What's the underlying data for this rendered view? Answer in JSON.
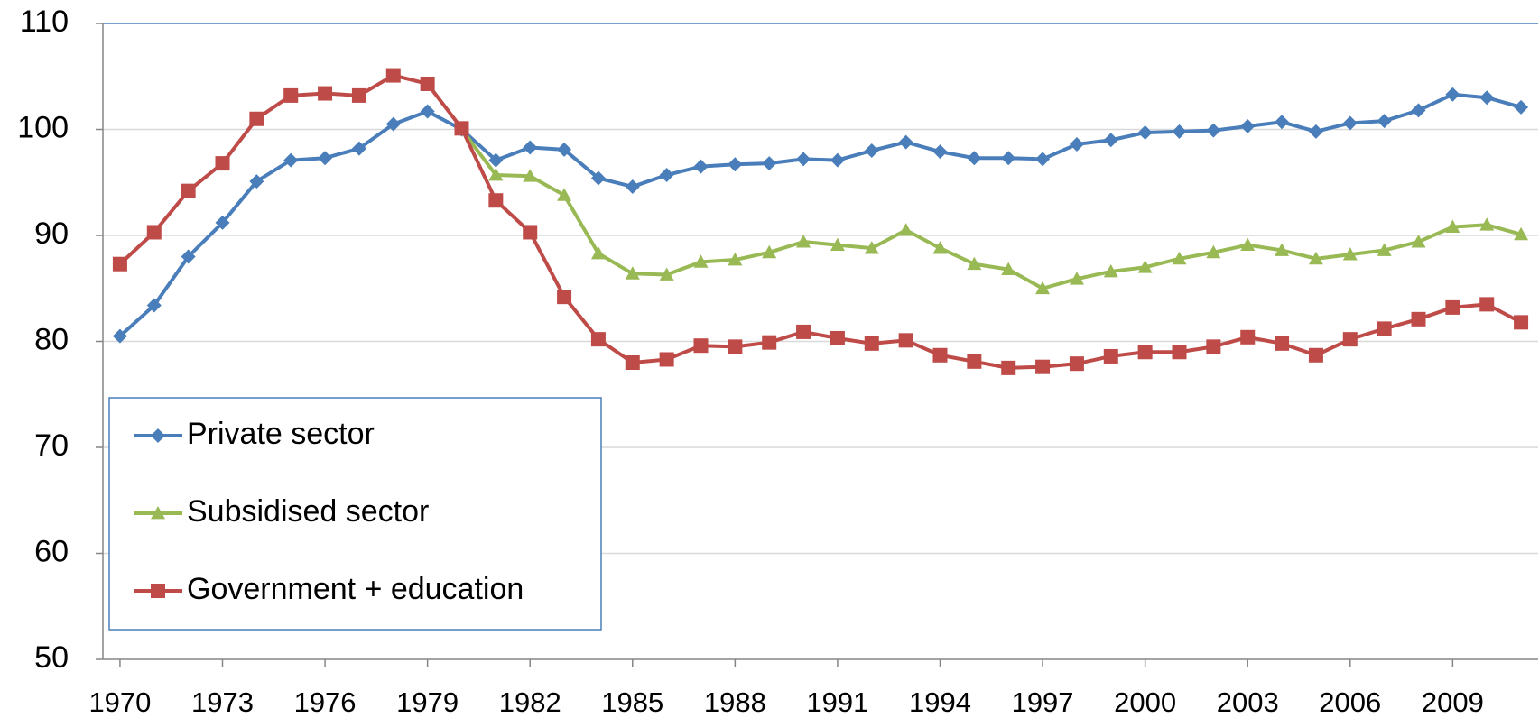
{
  "chart_data": {
    "type": "line",
    "x": [
      1970,
      1971,
      1972,
      1973,
      1974,
      1975,
      1976,
      1977,
      1978,
      1979,
      1980,
      1981,
      1982,
      1983,
      1984,
      1985,
      1986,
      1987,
      1988,
      1989,
      1990,
      1991,
      1992,
      1993,
      1994,
      1995,
      1996,
      1997,
      1998,
      1999,
      2000,
      2001,
      2002,
      2003,
      2004,
      2005,
      2006,
      2007,
      2008,
      2009,
      2010,
      2011
    ],
    "xlim": [
      1969.5,
      2011.5
    ],
    "xticks": [
      1970,
      1973,
      1976,
      1979,
      1982,
      1985,
      1988,
      1991,
      1994,
      1997,
      2000,
      2003,
      2006,
      2009
    ],
    "ylim": [
      50,
      110
    ],
    "yticks": [
      50,
      60,
      70,
      80,
      90,
      100,
      110
    ],
    "grid": true,
    "legend": "lower left",
    "series": [
      {
        "name": "Private sector",
        "color": "#4a7ebb",
        "marker": "diamond",
        "values": [
          80.5,
          83.4,
          88,
          91.2,
          95.1,
          97.1,
          97.3,
          98.2,
          100.5,
          101.7,
          100,
          97.1,
          98.3,
          98.1,
          95.4,
          94.6,
          95.7,
          96.5,
          96.7,
          96.8,
          97.2,
          97.1,
          98,
          98.8,
          97.9,
          97.3,
          97.3,
          97.2,
          98.6,
          99,
          99.7,
          99.8,
          99.9,
          100.3,
          100.7,
          99.8,
          100.6,
          100.8,
          101.8,
          103.3,
          103,
          102.1
        ]
      },
      {
        "name": "Subsidised sector",
        "color": "#98b954",
        "marker": "triangle",
        "values": [
          null,
          null,
          null,
          null,
          null,
          null,
          null,
          null,
          null,
          null,
          100,
          95.7,
          95.6,
          93.8,
          88.3,
          86.4,
          86.3,
          87.5,
          87.7,
          88.4,
          89.4,
          89.1,
          88.8,
          90.5,
          88.8,
          87.3,
          86.8,
          85,
          85.9,
          86.6,
          87,
          87.8,
          88.4,
          89.1,
          88.6,
          87.8,
          88.2,
          88.6,
          89.4,
          90.8,
          91,
          90.1
        ]
      },
      {
        "name": "Government + education",
        "color": "#be4b48",
        "marker": "square",
        "values": [
          87.3,
          90.3,
          94.2,
          96.8,
          101,
          103.2,
          103.4,
          103.2,
          105.1,
          104.3,
          100.1,
          93.3,
          90.3,
          84.2,
          80.2,
          78,
          78.3,
          79.6,
          79.5,
          79.9,
          80.9,
          80.3,
          79.8,
          80.1,
          78.7,
          78.1,
          77.5,
          77.6,
          77.9,
          78.6,
          79,
          79,
          79.5,
          80.4,
          79.8,
          78.7,
          80.2,
          81.2,
          82.1,
          83.2,
          83.5,
          81.8
        ]
      }
    ]
  }
}
